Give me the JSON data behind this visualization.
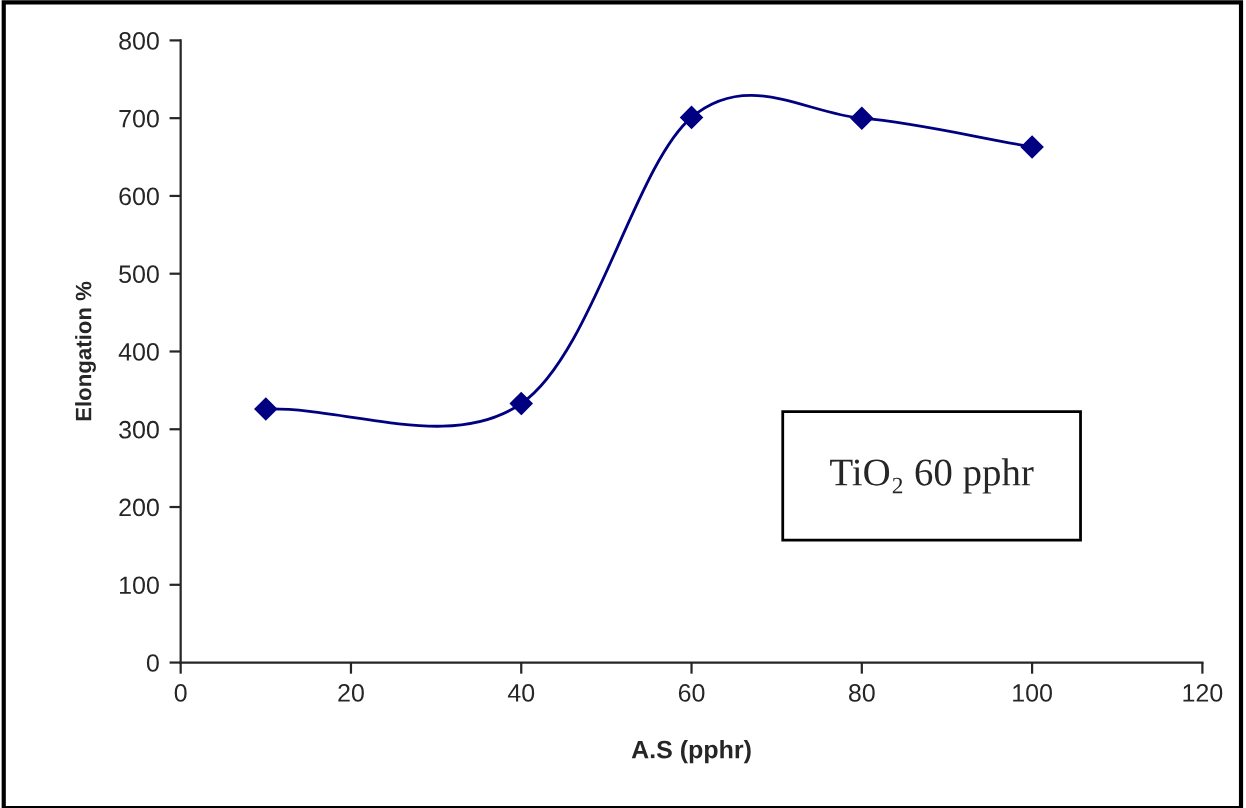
{
  "chart_data": {
    "type": "line",
    "xlabel": "A.S (pphr)",
    "ylabel": "Elongation %",
    "x": [
      10,
      40,
      60,
      80,
      100
    ],
    "series": [
      {
        "color": "#000080",
        "values": [
          326,
          333,
          701,
          700,
          663
        ]
      }
    ],
    "marker": "diamond",
    "line_style": "solid",
    "xlim": [
      0,
      120
    ],
    "xticks": [
      0,
      20,
      40,
      60,
      80,
      100,
      120
    ],
    "ylim": [
      0,
      800
    ],
    "yticks": [
      0,
      100,
      200,
      300,
      400,
      500,
      600,
      700,
      800
    ],
    "grid": false,
    "annotations": [
      "TiO₂ 60 pphr"
    ]
  }
}
